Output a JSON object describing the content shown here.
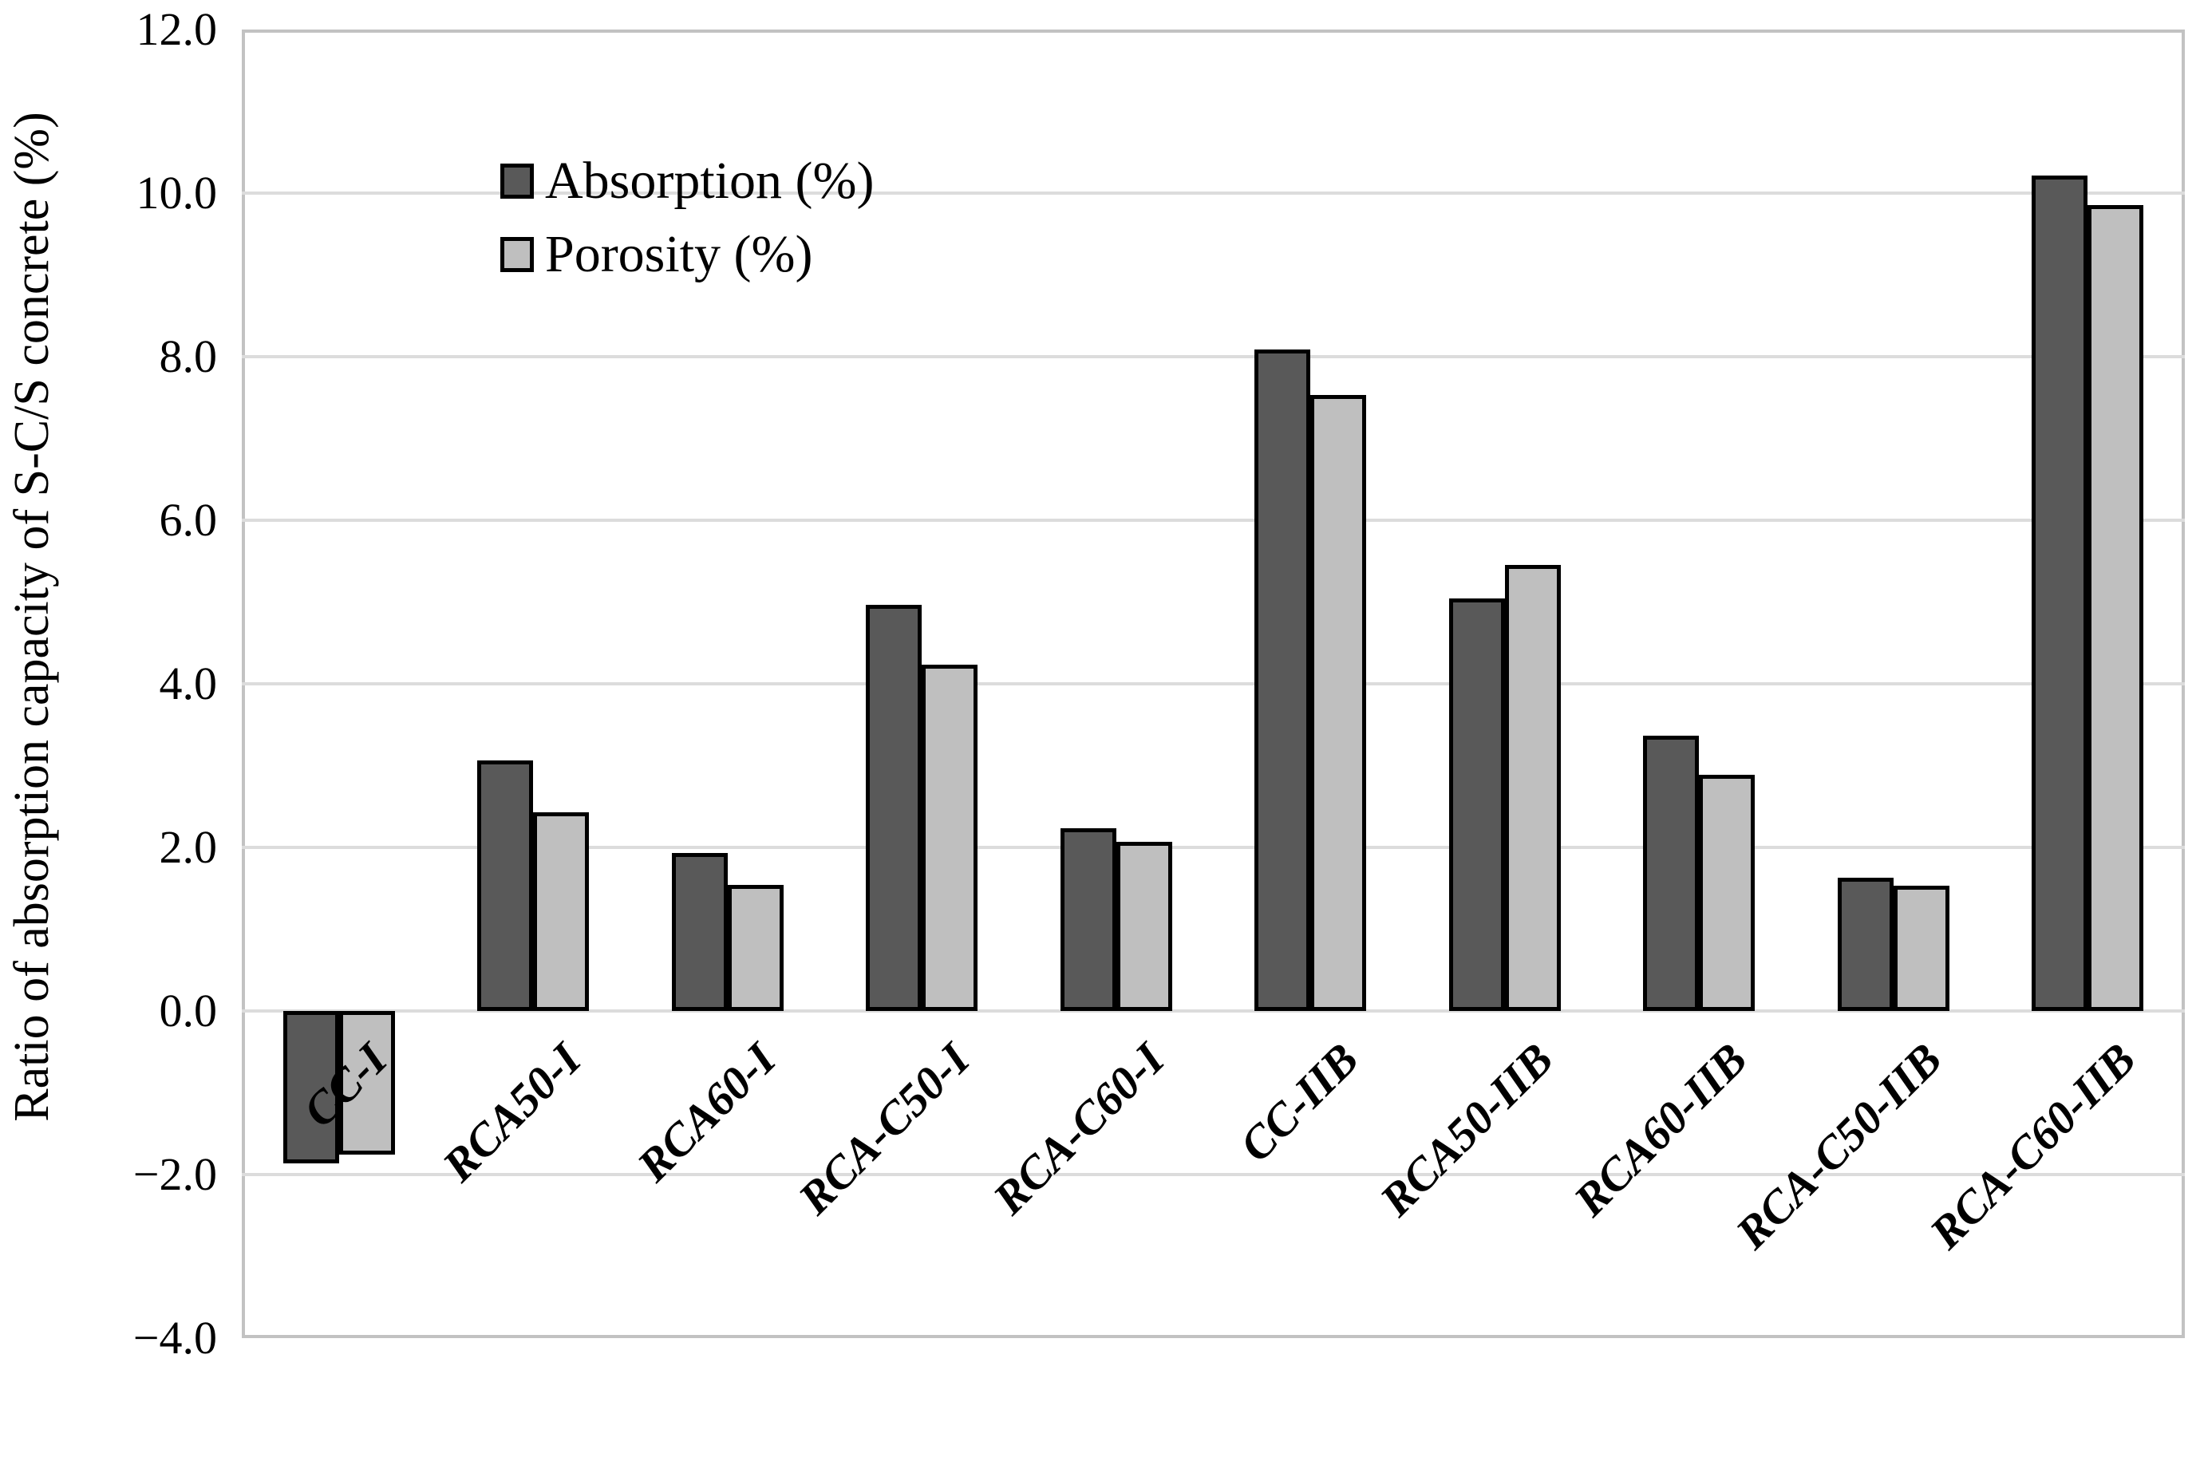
{
  "chart_data": {
    "type": "bar",
    "title": "",
    "xlabel": "",
    "ylabel": "Ratio of absorption capacity of S-C/S concrete (%)",
    "ylim": [
      -4.0,
      12.0
    ],
    "ytick_step": 2.0,
    "ytick_labels": [
      "12.0",
      "10.0",
      "8.0",
      "6.0",
      "4.0",
      "2.0",
      "0.0",
      "−2.0",
      "−4.0"
    ],
    "grid": "horizontal",
    "legend_position": "top-left-inside",
    "categories": [
      "CC-I",
      "RCA50-I",
      "RCA60-I",
      "RCA-C50-I",
      "RCA-C60-I",
      "CC-IIB",
      "RCA50-IIB",
      "RCA60-IIB",
      "RCA-C50-IIB",
      "RCA-C60-IIB"
    ],
    "series": [
      {
        "name": "Absorption (%)",
        "color": "#595959",
        "values": [
          -1.86,
          3.06,
          1.93,
          4.97,
          2.23,
          8.09,
          5.04,
          3.37,
          1.63,
          10.21
        ]
      },
      {
        "name": "Porosity (%)",
        "color": "#bfbfbf",
        "values": [
          -1.76,
          2.43,
          1.54,
          4.23,
          2.07,
          7.53,
          5.45,
          2.89,
          1.53,
          9.85
        ]
      }
    ],
    "colors": {
      "bar_border": "#000000",
      "gridline": "#dcdcdc",
      "frame": "#c2c2c2",
      "text": "#000000",
      "background": "#ffffff"
    }
  }
}
